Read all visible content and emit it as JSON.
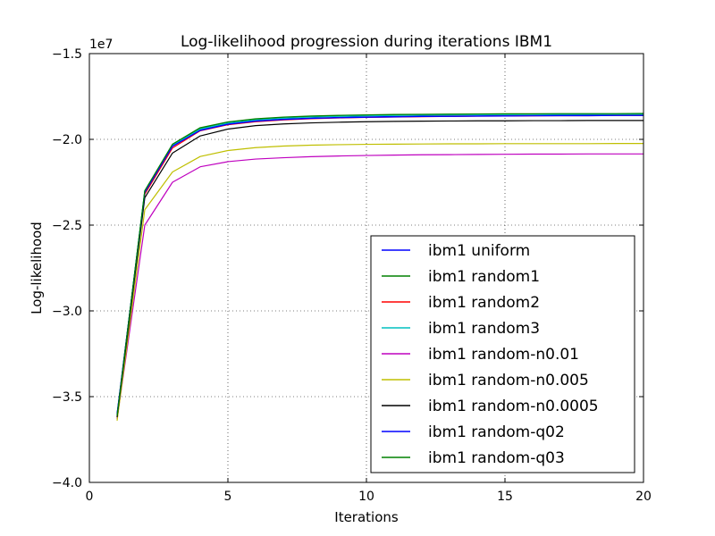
{
  "chart_data": {
    "type": "line",
    "title": "Log-likelihood progression during iterations IBM1",
    "xlabel": "Iterations",
    "ylabel": "Log-likelihood",
    "offset_label": "1e7",
    "xlim": [
      0,
      20
    ],
    "ylim": [
      -4.0,
      -1.5
    ],
    "scale": 10000000,
    "xticks": [
      0,
      5,
      10,
      15,
      20
    ],
    "xtick_labels": [
      "0",
      "5",
      "10",
      "15",
      "20"
    ],
    "yticks": [
      -4.0,
      -3.5,
      -3.0,
      -2.5,
      -2.0,
      -1.5
    ],
    "ytick_labels": [
      "−4.0",
      "−3.5",
      "−3.0",
      "−2.5",
      "−2.0",
      "−1.5"
    ],
    "grid": true,
    "legend_position": "lower-right",
    "x": [
      1,
      2,
      3,
      4,
      5,
      6,
      7,
      8,
      9,
      10,
      11,
      12,
      13,
      14,
      15,
      16,
      17,
      18,
      19,
      20
    ],
    "series": [
      {
        "name": "ibm1 uniform",
        "color": "#0000ff",
        "values": [
          -3.6,
          -2.31,
          -2.04,
          -1.945,
          -1.91,
          -1.892,
          -1.882,
          -1.876,
          -1.872,
          -1.869,
          -1.867,
          -1.865,
          -1.864,
          -1.863,
          -1.862,
          -1.861,
          -1.86,
          -1.86,
          -1.859,
          -1.859
        ]
      },
      {
        "name": "ibm1 random1",
        "color": "#008000",
        "values": [
          -3.61,
          -2.3,
          -2.03,
          -1.935,
          -1.9,
          -1.882,
          -1.872,
          -1.866,
          -1.862,
          -1.859,
          -1.857,
          -1.856,
          -1.855,
          -1.854,
          -1.853,
          -1.853,
          -1.852,
          -1.852,
          -1.852,
          -1.851
        ]
      },
      {
        "name": "ibm1 random2",
        "color": "#ff0000",
        "values": [
          -3.62,
          -2.32,
          -2.05,
          -1.95,
          -1.915,
          -1.897,
          -1.887,
          -1.88,
          -1.875,
          -1.872,
          -1.87,
          -1.868,
          -1.866,
          -1.865,
          -1.864,
          -1.863,
          -1.862,
          -1.862,
          -1.861,
          -1.861
        ]
      },
      {
        "name": "ibm1 random3",
        "color": "#00bfbf",
        "values": [
          -3.61,
          -2.3,
          -2.035,
          -1.94,
          -1.905,
          -1.887,
          -1.877,
          -1.87,
          -1.866,
          -1.863,
          -1.861,
          -1.859,
          -1.858,
          -1.857,
          -1.856,
          -1.855,
          -1.855,
          -1.854,
          -1.854,
          -1.854
        ]
      },
      {
        "name": "ibm1 random-n0.01",
        "color": "#bf00bf",
        "values": [
          -3.63,
          -2.5,
          -2.25,
          -2.16,
          -2.13,
          -2.115,
          -2.107,
          -2.101,
          -2.097,
          -2.094,
          -2.092,
          -2.09,
          -2.089,
          -2.088,
          -2.087,
          -2.086,
          -2.086,
          -2.085,
          -2.085,
          -2.085
        ]
      },
      {
        "name": "ibm1 random-n0.005",
        "color": "#bfbf00",
        "values": [
          -3.64,
          -2.41,
          -2.19,
          -2.1,
          -2.065,
          -2.048,
          -2.039,
          -2.034,
          -2.031,
          -2.029,
          -2.028,
          -2.027,
          -2.026,
          -2.026,
          -2.025,
          -2.025,
          -2.025,
          -2.025,
          -2.024,
          -2.024
        ]
      },
      {
        "name": "ibm1 random-n0.0005",
        "color": "#000000",
        "values": [
          -3.62,
          -2.34,
          -2.08,
          -1.98,
          -1.94,
          -1.92,
          -1.91,
          -1.904,
          -1.9,
          -1.897,
          -1.895,
          -1.894,
          -1.893,
          -1.892,
          -1.892,
          -1.891,
          -1.891,
          -1.89,
          -1.89,
          -1.89
        ]
      },
      {
        "name": "ibm1 random-q02",
        "color": "#0000ff",
        "values": [
          -3.6,
          -2.31,
          -2.04,
          -1.948,
          -1.912,
          -1.894,
          -1.884,
          -1.878,
          -1.874,
          -1.871,
          -1.869,
          -1.867,
          -1.866,
          -1.865,
          -1.864,
          -1.863,
          -1.862,
          -1.862,
          -1.861,
          -1.861
        ]
      },
      {
        "name": "ibm1 random-q03",
        "color": "#008000",
        "values": [
          -3.61,
          -2.3,
          -2.028,
          -1.932,
          -1.898,
          -1.88,
          -1.87,
          -1.864,
          -1.86,
          -1.857,
          -1.855,
          -1.854,
          -1.853,
          -1.852,
          -1.851,
          -1.851,
          -1.85,
          -1.85,
          -1.85,
          -1.849
        ]
      }
    ]
  }
}
